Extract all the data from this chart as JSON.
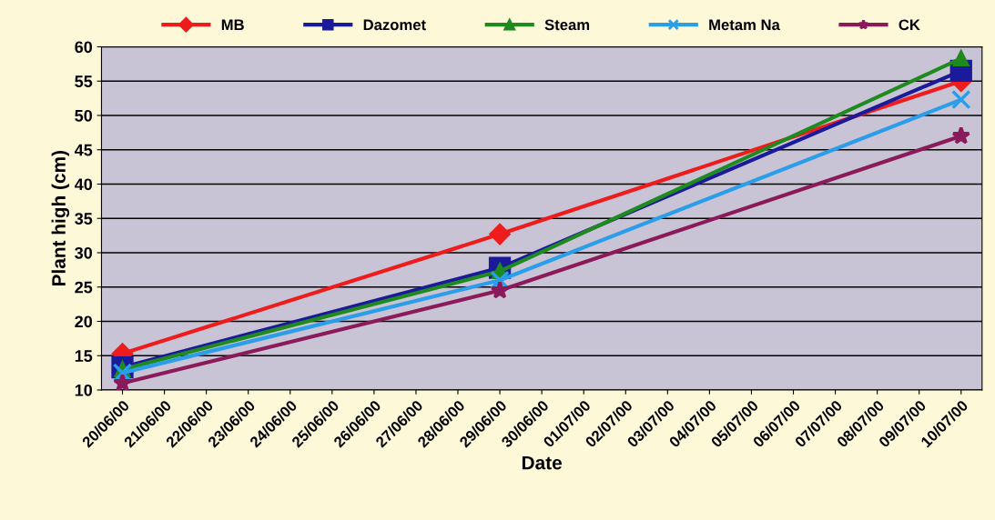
{
  "chart_data": {
    "type": "line",
    "xlabel": "Date",
    "ylabel": "Plant high (cm)",
    "categories": [
      "20/06/00",
      "21/06/00",
      "22/06/00",
      "23/06/00",
      "24/06/00",
      "25/06/00",
      "26/06/00",
      "27/06/00",
      "28/06/00",
      "29/06/00",
      "30/06/00",
      "01/07/00",
      "02/07/00",
      "03/07/00",
      "04/07/00",
      "05/07/00",
      "06/07/00",
      "07/07/00",
      "08/07/00",
      "09/07/00",
      "10/07/00"
    ],
    "series": [
      {
        "name": "MB",
        "color": "#ee1c1c",
        "marker": "diamond",
        "values": [
          15.3,
          null,
          null,
          null,
          null,
          null,
          null,
          null,
          null,
          32.7,
          null,
          null,
          null,
          null,
          null,
          null,
          null,
          null,
          null,
          null,
          55
        ]
      },
      {
        "name": "Dazomet",
        "color": "#1a1a9a",
        "marker": "square",
        "values": [
          13.3,
          null,
          null,
          null,
          null,
          null,
          null,
          null,
          null,
          27.8,
          null,
          null,
          null,
          null,
          null,
          null,
          null,
          null,
          null,
          null,
          56.5
        ]
      },
      {
        "name": "Steam",
        "color": "#1f8a1f",
        "marker": "triangle",
        "values": [
          13,
          null,
          null,
          null,
          null,
          null,
          null,
          null,
          null,
          27.3,
          null,
          null,
          null,
          null,
          null,
          null,
          null,
          null,
          null,
          null,
          58.3
        ]
      },
      {
        "name": "Metam Na",
        "color": "#2a9ee8",
        "marker": "cross",
        "values": [
          12.5,
          null,
          null,
          null,
          null,
          null,
          null,
          null,
          null,
          26,
          null,
          null,
          null,
          null,
          null,
          null,
          null,
          null,
          null,
          null,
          52.3
        ]
      },
      {
        "name": "CK",
        "color": "#8a1a5a",
        "marker": "star",
        "values": [
          11,
          null,
          null,
          null,
          null,
          null,
          null,
          null,
          null,
          24.5,
          null,
          null,
          null,
          null,
          null,
          null,
          null,
          null,
          null,
          null,
          47
        ]
      }
    ],
    "ylim": [
      10,
      60
    ],
    "yticks": [
      10,
      15,
      20,
      25,
      30,
      35,
      40,
      45,
      50,
      55,
      60
    ],
    "grid": "y",
    "legend": "top",
    "line_style": "solid"
  }
}
